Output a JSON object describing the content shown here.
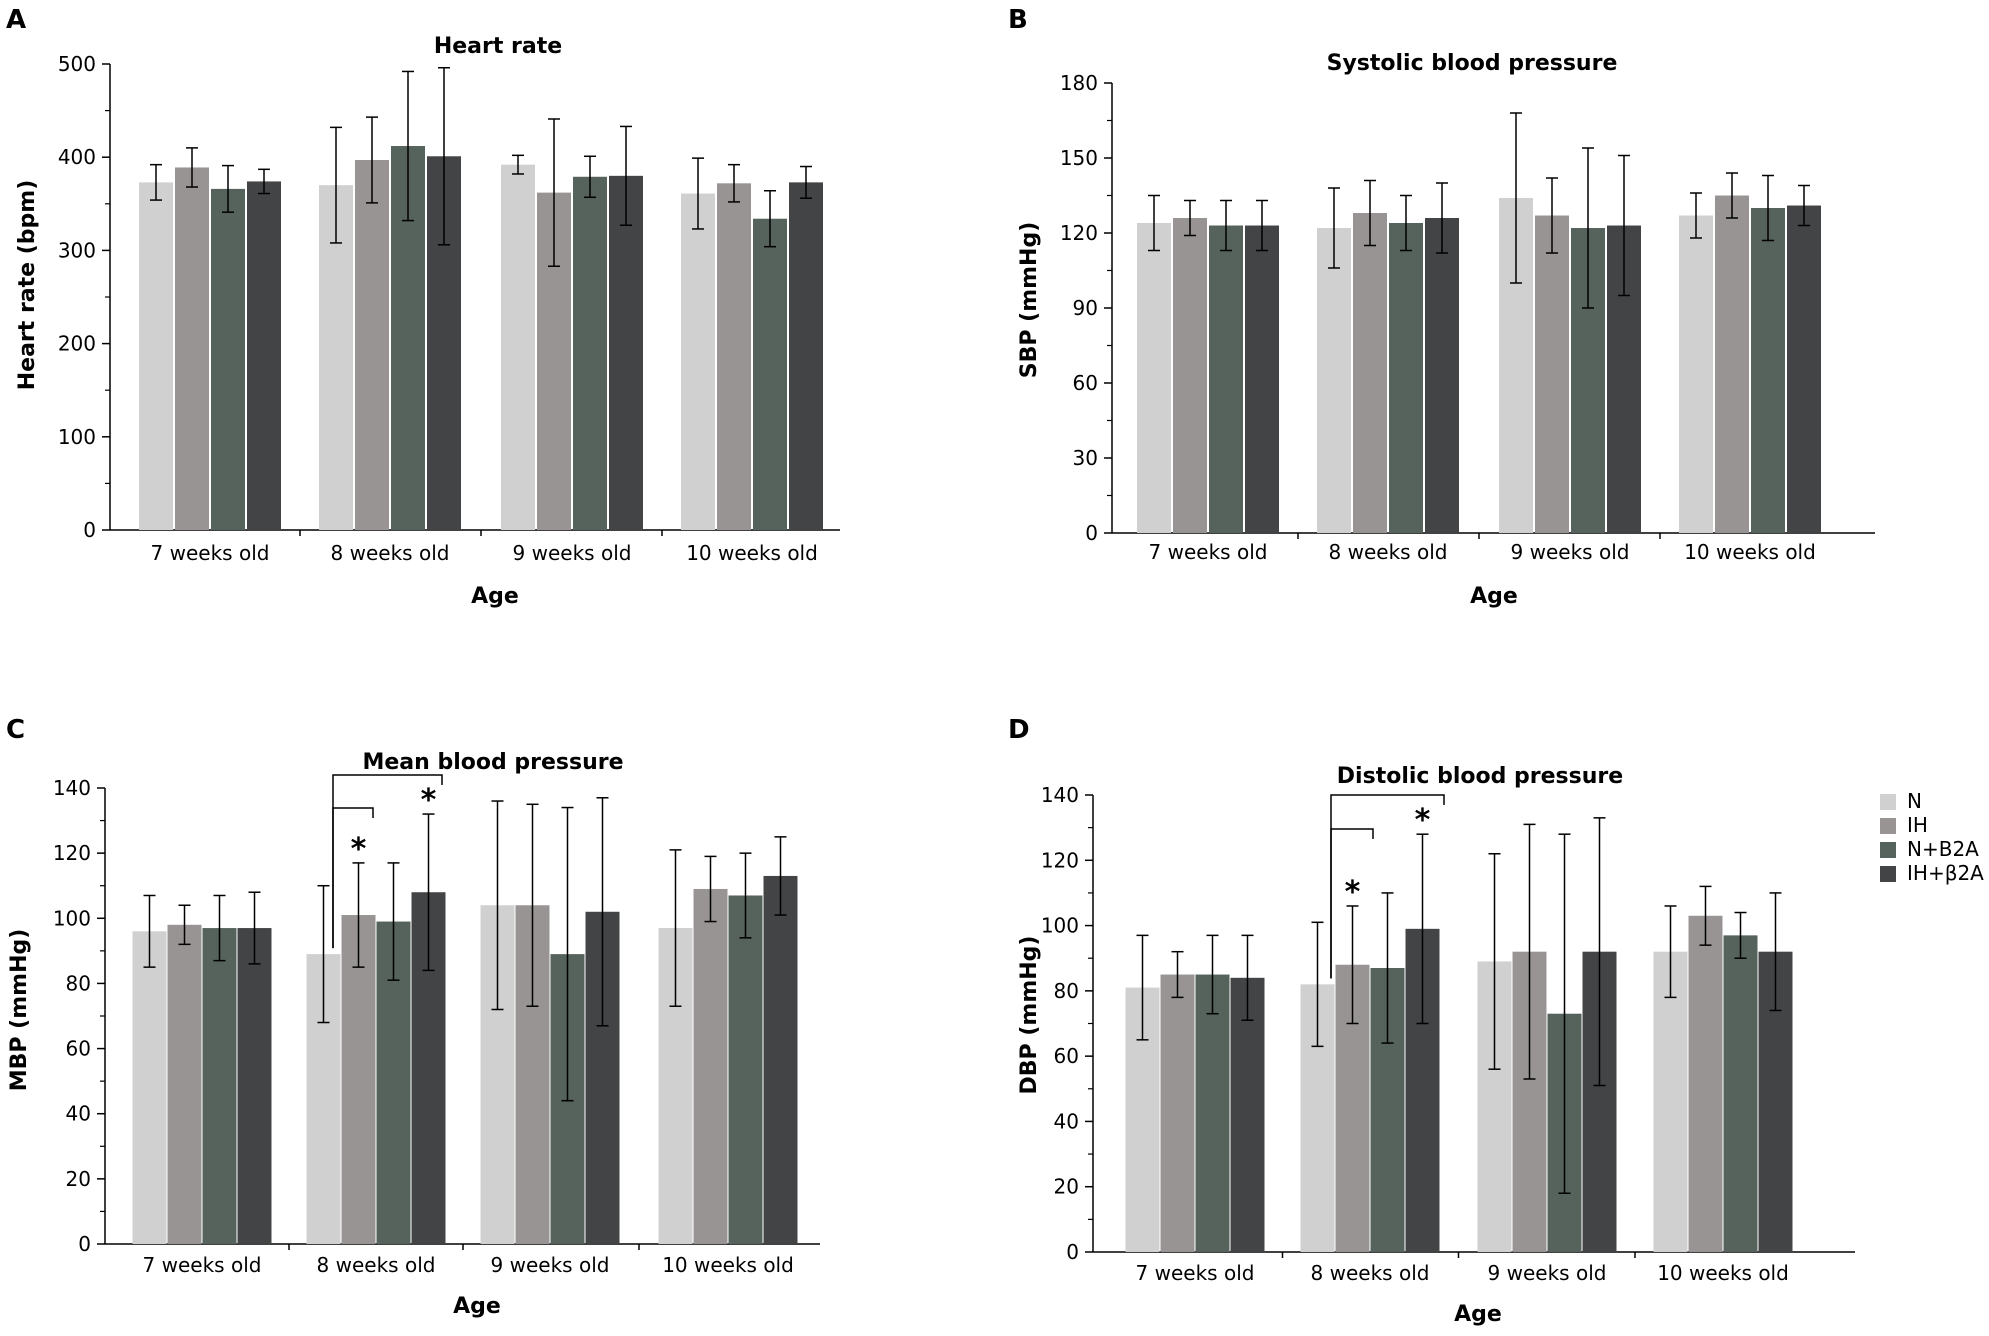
{
  "legend": {
    "items": [
      {
        "label": "N",
        "color": "#d0d0d0"
      },
      {
        "label": "IH",
        "color": "#989494"
      },
      {
        "label": "N+B2A",
        "color": "#56635c"
      },
      {
        "label": "IH+β2A",
        "color": "#434446"
      }
    ]
  },
  "chart_data": [
    {
      "panel": "A",
      "type": "bar",
      "title": "Heart rate",
      "xlabel": "Age",
      "ylabel": "Heart rate (bpm)",
      "ylim": [
        0,
        500
      ],
      "yticks": [
        0,
        100,
        200,
        300,
        400,
        500
      ],
      "categories": [
        "7 weeks old",
        "8 weeks old",
        "9 weeks old",
        "10 weeks old"
      ],
      "series": [
        {
          "name": "N",
          "values": [
            373,
            370,
            392,
            361
          ],
          "errors": [
            19,
            62,
            10,
            38
          ]
        },
        {
          "name": "IH",
          "values": [
            389,
            397,
            362,
            372
          ],
          "errors": [
            21,
            46,
            79,
            20
          ]
        },
        {
          "name": "N+B2A",
          "values": [
            366,
            412,
            379,
            334
          ],
          "errors": [
            25,
            80,
            22,
            30
          ]
        },
        {
          "name": "IH+β2A",
          "values": [
            374,
            401,
            380,
            373
          ],
          "errors": [
            13,
            95,
            53,
            17
          ]
        }
      ],
      "annotations": []
    },
    {
      "panel": "B",
      "type": "bar",
      "title": "Systolic blood pressure",
      "xlabel": "Age",
      "ylabel": "SBP (mmHg)",
      "ylim": [
        0,
        180
      ],
      "yticks": [
        0,
        30,
        60,
        90,
        120,
        150,
        180
      ],
      "categories": [
        "7 weeks old",
        "8 weeks old",
        "9 weeks old",
        "10 weeks old"
      ],
      "series": [
        {
          "name": "N",
          "values": [
            124,
            122,
            134,
            127
          ],
          "errors": [
            11,
            16,
            34,
            9
          ]
        },
        {
          "name": "IH",
          "values": [
            126,
            128,
            127,
            135
          ],
          "errors": [
            7,
            13,
            15,
            9
          ]
        },
        {
          "name": "N+B2A",
          "values": [
            123,
            124,
            122,
            130
          ],
          "errors": [
            10,
            11,
            32,
            13
          ]
        },
        {
          "name": "IH+β2A",
          "values": [
            123,
            126,
            123,
            131
          ],
          "errors": [
            10,
            14,
            28,
            8
          ]
        }
      ],
      "annotations": []
    },
    {
      "panel": "C",
      "type": "bar",
      "title": "Mean blood pressure",
      "xlabel": "Age",
      "ylabel": "MBP (mmHg)",
      "ylim": [
        0,
        140
      ],
      "yticks": [
        0,
        20,
        40,
        60,
        80,
        100,
        120,
        140
      ],
      "categories": [
        "7 weeks old",
        "8 weeks old",
        "9 weeks old",
        "10 weeks old"
      ],
      "series": [
        {
          "name": "N",
          "values": [
            96,
            89,
            104,
            97
          ],
          "errors": [
            11,
            21,
            32,
            24
          ]
        },
        {
          "name": "IH",
          "values": [
            98,
            101,
            104,
            109
          ],
          "errors": [
            6,
            16,
            31,
            10
          ]
        },
        {
          "name": "N+B2A",
          "values": [
            97,
            99,
            89,
            107
          ],
          "errors": [
            10,
            18,
            45,
            13
          ]
        },
        {
          "name": "IH+β2A",
          "values": [
            97,
            108,
            102,
            113
          ],
          "errors": [
            11,
            24,
            35,
            12
          ]
        }
      ],
      "annotations": [
        "*",
        "*"
      ]
    },
    {
      "panel": "D",
      "type": "bar",
      "title": "Distolic blood pressure",
      "xlabel": "Age",
      "ylabel": "DBP (mmHg)",
      "ylim": [
        0,
        140
      ],
      "yticks": [
        0,
        20,
        40,
        60,
        80,
        100,
        120,
        140
      ],
      "categories": [
        "7 weeks old",
        "8 weeks old",
        "9 weeks old",
        "10 weeks old"
      ],
      "series": [
        {
          "name": "N",
          "values": [
            81,
            82,
            89,
            92
          ],
          "errors": [
            16,
            19,
            33,
            14
          ]
        },
        {
          "name": "IH",
          "values": [
            85,
            88,
            92,
            103
          ],
          "errors": [
            7,
            18,
            39,
            9
          ]
        },
        {
          "name": "N+B2A",
          "values": [
            85,
            87,
            73,
            97
          ],
          "errors": [
            12,
            23,
            55,
            7
          ]
        },
        {
          "name": "IH+β2A",
          "values": [
            84,
            99,
            92,
            92
          ],
          "errors": [
            13,
            29,
            41,
            18
          ]
        }
      ],
      "annotations": [
        "*",
        "*"
      ]
    }
  ]
}
